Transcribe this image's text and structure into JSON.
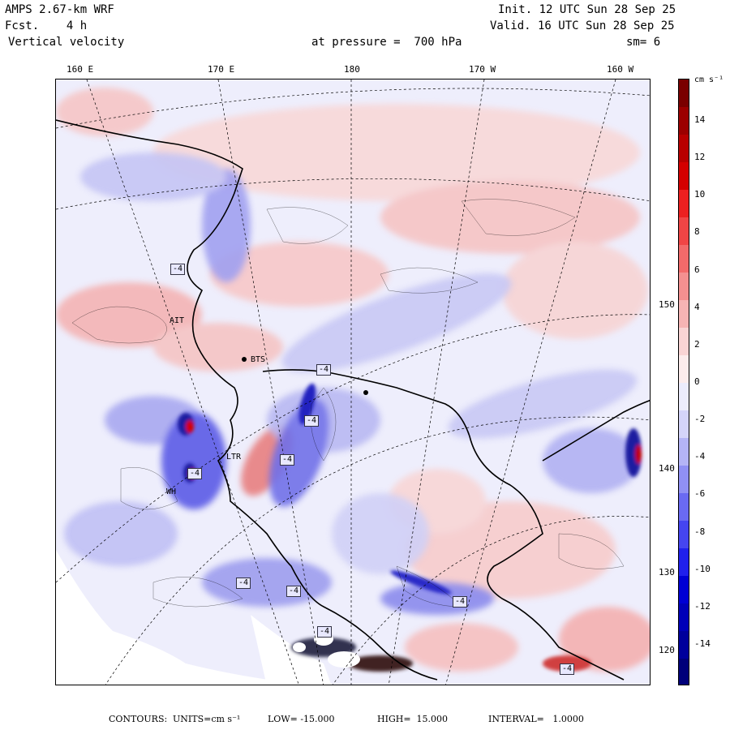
{
  "header": {
    "line1_left": "AMPS 2.67-km WRF",
    "line2_left": "Fcst.    4 h",
    "line3_left": "Vertical velocity",
    "line1_right": "Init. 12 UTC Sun 28 Sep 25",
    "line2_right": "Valid. 16 UTC Sun 28 Sep 25",
    "pressure_text": "at pressure =  700 hPa",
    "smooth_text": "sm= 6"
  },
  "top_longitudes": [
    "160 E",
    "170 E",
    "180",
    "170 W",
    "160 W"
  ],
  "right_longitudes": [
    "150 W",
    "140 W",
    "130 W",
    "120 W"
  ],
  "station_labels": [
    "BTS",
    "AIT",
    "LTR",
    "WH"
  ],
  "contour_tags": [
    "-4",
    "-4",
    "-4",
    "-4",
    "-4",
    "-4",
    "-4",
    "-4",
    "-4",
    "-4"
  ],
  "colorbar": {
    "units": "cm s⁻¹",
    "ticks": [
      "14",
      "12",
      "10",
      "8",
      "6",
      "4",
      "2",
      "0",
      "-2",
      "-4",
      "-6",
      "-8",
      "-10",
      "-12",
      "-14"
    ],
    "colors": [
      "#7a0000",
      "#9c0000",
      "#b80000",
      "#d40000",
      "#ec2020",
      "#f04545",
      "#f26a6a",
      "#f49090",
      "#f6b4b4",
      "#f9d4d4",
      "#fcecec",
      "#ececfc",
      "#d4d4f9",
      "#b4b4f6",
      "#9090f4",
      "#6a6af2",
      "#4545f0",
      "#2020ec",
      "#0000d4",
      "#0000b8",
      "#00009c",
      "#00007a"
    ]
  },
  "footer": {
    "contours_label": "CONTOURS:",
    "units_text": "UNITS=cm s⁻¹",
    "low_text": "LOW= -15.000",
    "high_text": "HIGH=  15.000",
    "interval_text": "INTERVAL=   1.0000"
  }
}
